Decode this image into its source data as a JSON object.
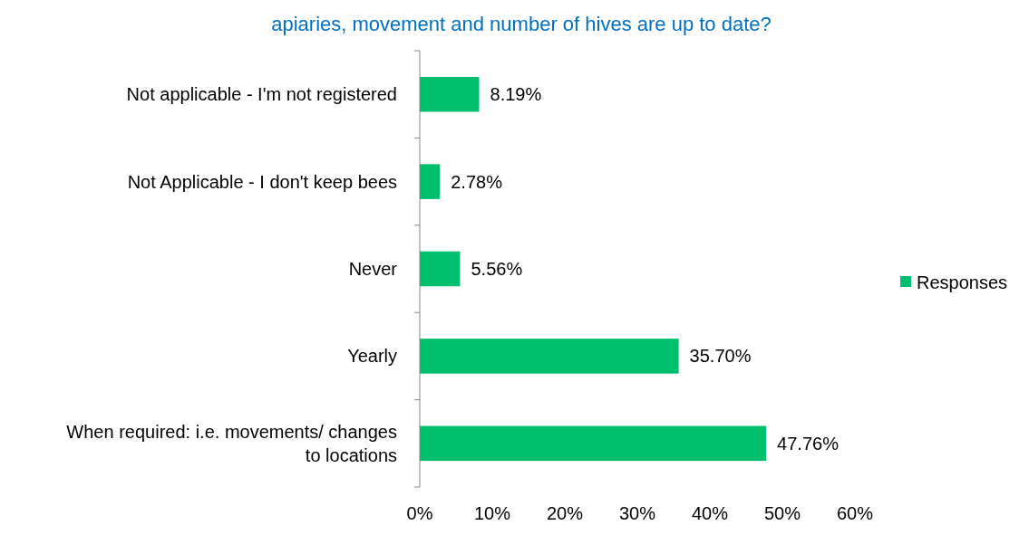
{
  "chart_data": {
    "type": "bar",
    "orientation": "horizontal",
    "title": "apiaries, movement and number of hives are up to date?",
    "categories": [
      "Not applicable - I'm not registered",
      "Not Applicable - I don't keep bees",
      "Never",
      "Yearly",
      "When required: i.e. movements/ changes to locations"
    ],
    "series": [
      {
        "name": "Responses",
        "color": "#00c06f",
        "values": [
          8.19,
          2.78,
          5.56,
          35.7,
          47.76
        ],
        "value_labels": [
          "8.19%",
          "2.78%",
          "5.56%",
          "35.70%",
          "47.76%"
        ]
      }
    ],
    "xlim": [
      0,
      60
    ],
    "xticks": [
      {
        "value": 0,
        "label": "0%"
      },
      {
        "value": 10,
        "label": "10%"
      },
      {
        "value": 20,
        "label": "20%"
      },
      {
        "value": 30,
        "label": "30%"
      },
      {
        "value": 40,
        "label": "40%"
      },
      {
        "value": 50,
        "label": "50%"
      },
      {
        "value": 60,
        "label": "60%"
      }
    ],
    "grid": false,
    "legend": "right"
  }
}
